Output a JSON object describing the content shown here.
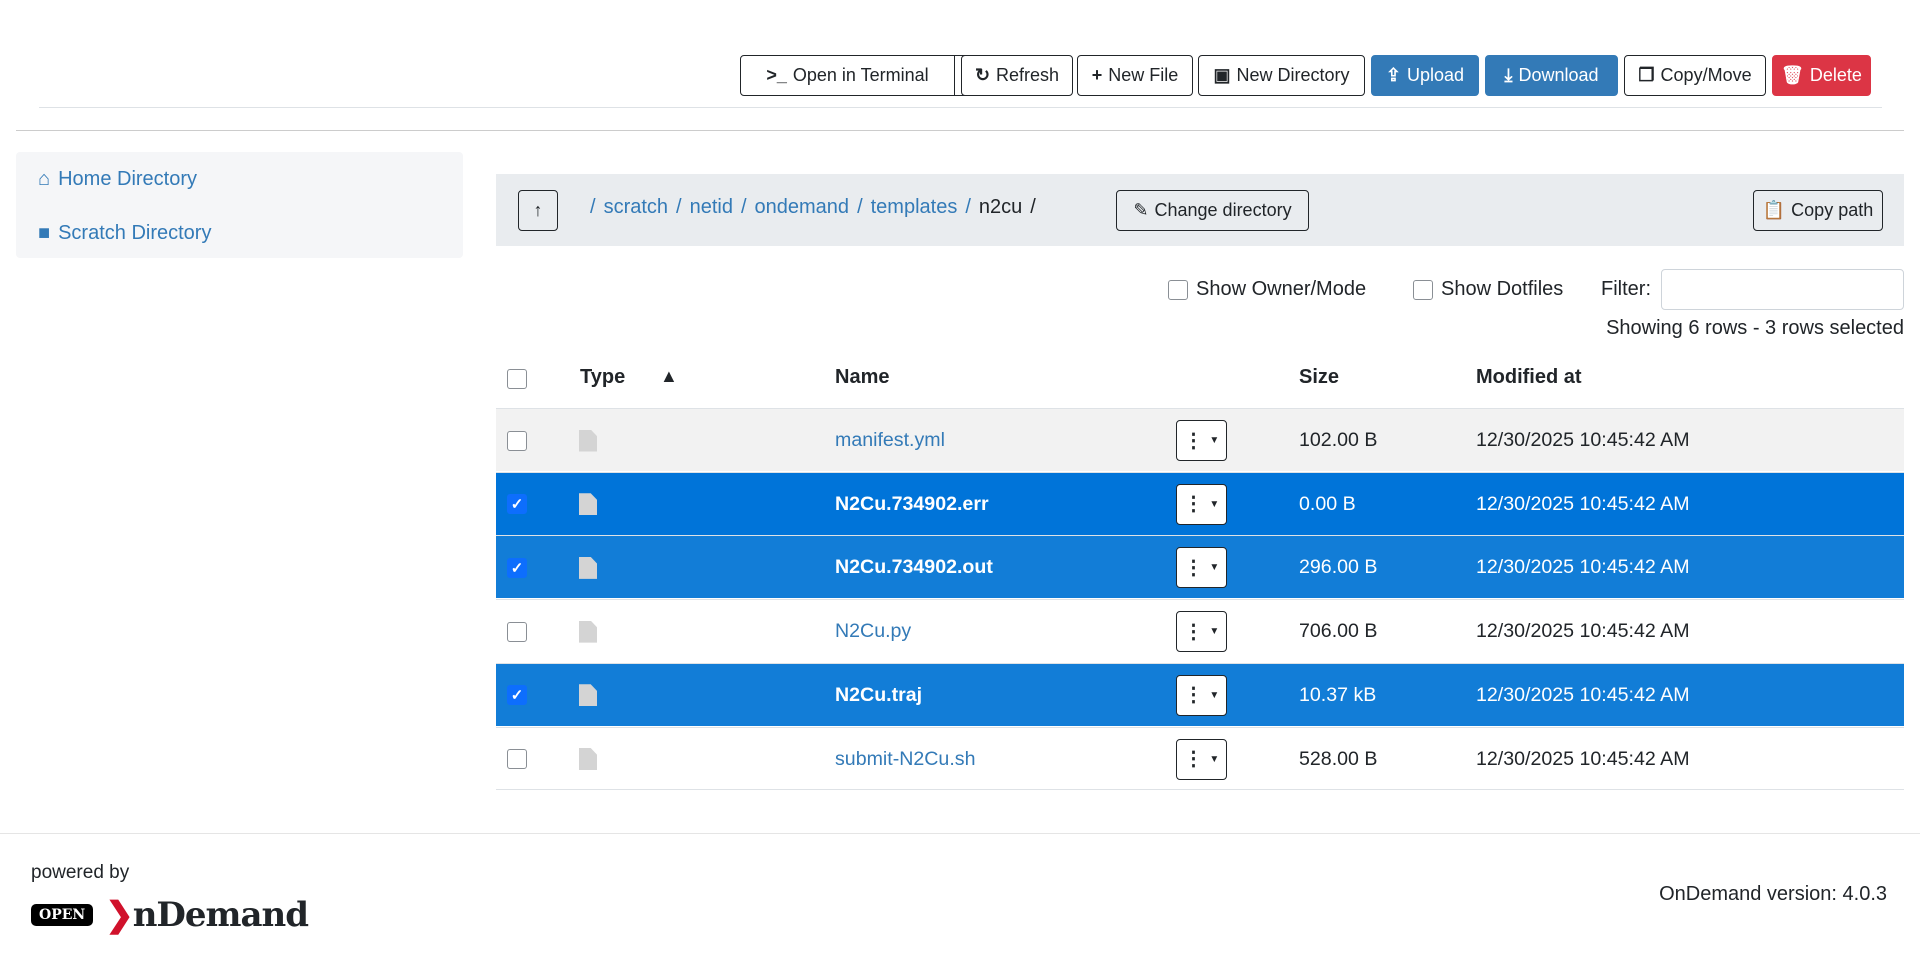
{
  "toolbar": {
    "open_terminal": "Open in Terminal",
    "refresh": "Refresh",
    "new_file": "New File",
    "new_directory": "New Directory",
    "upload": "Upload",
    "download": "Download",
    "copy_move": "Copy/Move",
    "delete": "Delete"
  },
  "sidebar": {
    "items": [
      {
        "label": "Home Directory",
        "icon": "home-icon"
      },
      {
        "label": "Scratch Directory",
        "icon": "folder-icon"
      }
    ]
  },
  "breadcrumb": {
    "items": [
      "scratch",
      "netid",
      "ondemand",
      "templates"
    ],
    "current": "n2cu",
    "change_directory": "Change directory",
    "copy_path": "Copy path"
  },
  "filters": {
    "show_owner_mode": "Show Owner/Mode",
    "show_dotfiles": "Show Dotfiles",
    "filter_label": "Filter:",
    "filter_value": "",
    "status": "Showing 6 rows - 3 rows selected"
  },
  "table": {
    "headers": {
      "type": "Type",
      "name": "Name",
      "size": "Size",
      "modified": "Modified at"
    },
    "rows": [
      {
        "name": "manifest.yml",
        "size": "102.00 B",
        "modified": "12/30/2025 10:45:42 AM",
        "selected": false
      },
      {
        "name": "N2Cu.734902.err",
        "size": "0.00 B",
        "modified": "12/30/2025 10:45:42 AM",
        "selected": true
      },
      {
        "name": "N2Cu.734902.out",
        "size": "296.00 B",
        "modified": "12/30/2025 10:45:42 AM",
        "selected": true
      },
      {
        "name": "N2Cu.py",
        "size": "706.00 B",
        "modified": "12/30/2025 10:45:42 AM",
        "selected": false
      },
      {
        "name": "N2Cu.traj",
        "size": "10.37 kB",
        "modified": "12/30/2025 10:45:42 AM",
        "selected": true
      },
      {
        "name": "submit-N2Cu.sh",
        "size": "528.00 B",
        "modified": "12/30/2025 10:45:42 AM",
        "selected": false
      }
    ]
  },
  "footer": {
    "powered_by": "powered by",
    "logo_open": "OPEN",
    "logo_text": "OnDemand",
    "version": "OnDemand version: 4.0.3"
  },
  "colors": {
    "link": "#337ab7",
    "selected_row": "#0074d9",
    "selected_row_alt": "#127dd7",
    "danger": "#dc3545"
  }
}
